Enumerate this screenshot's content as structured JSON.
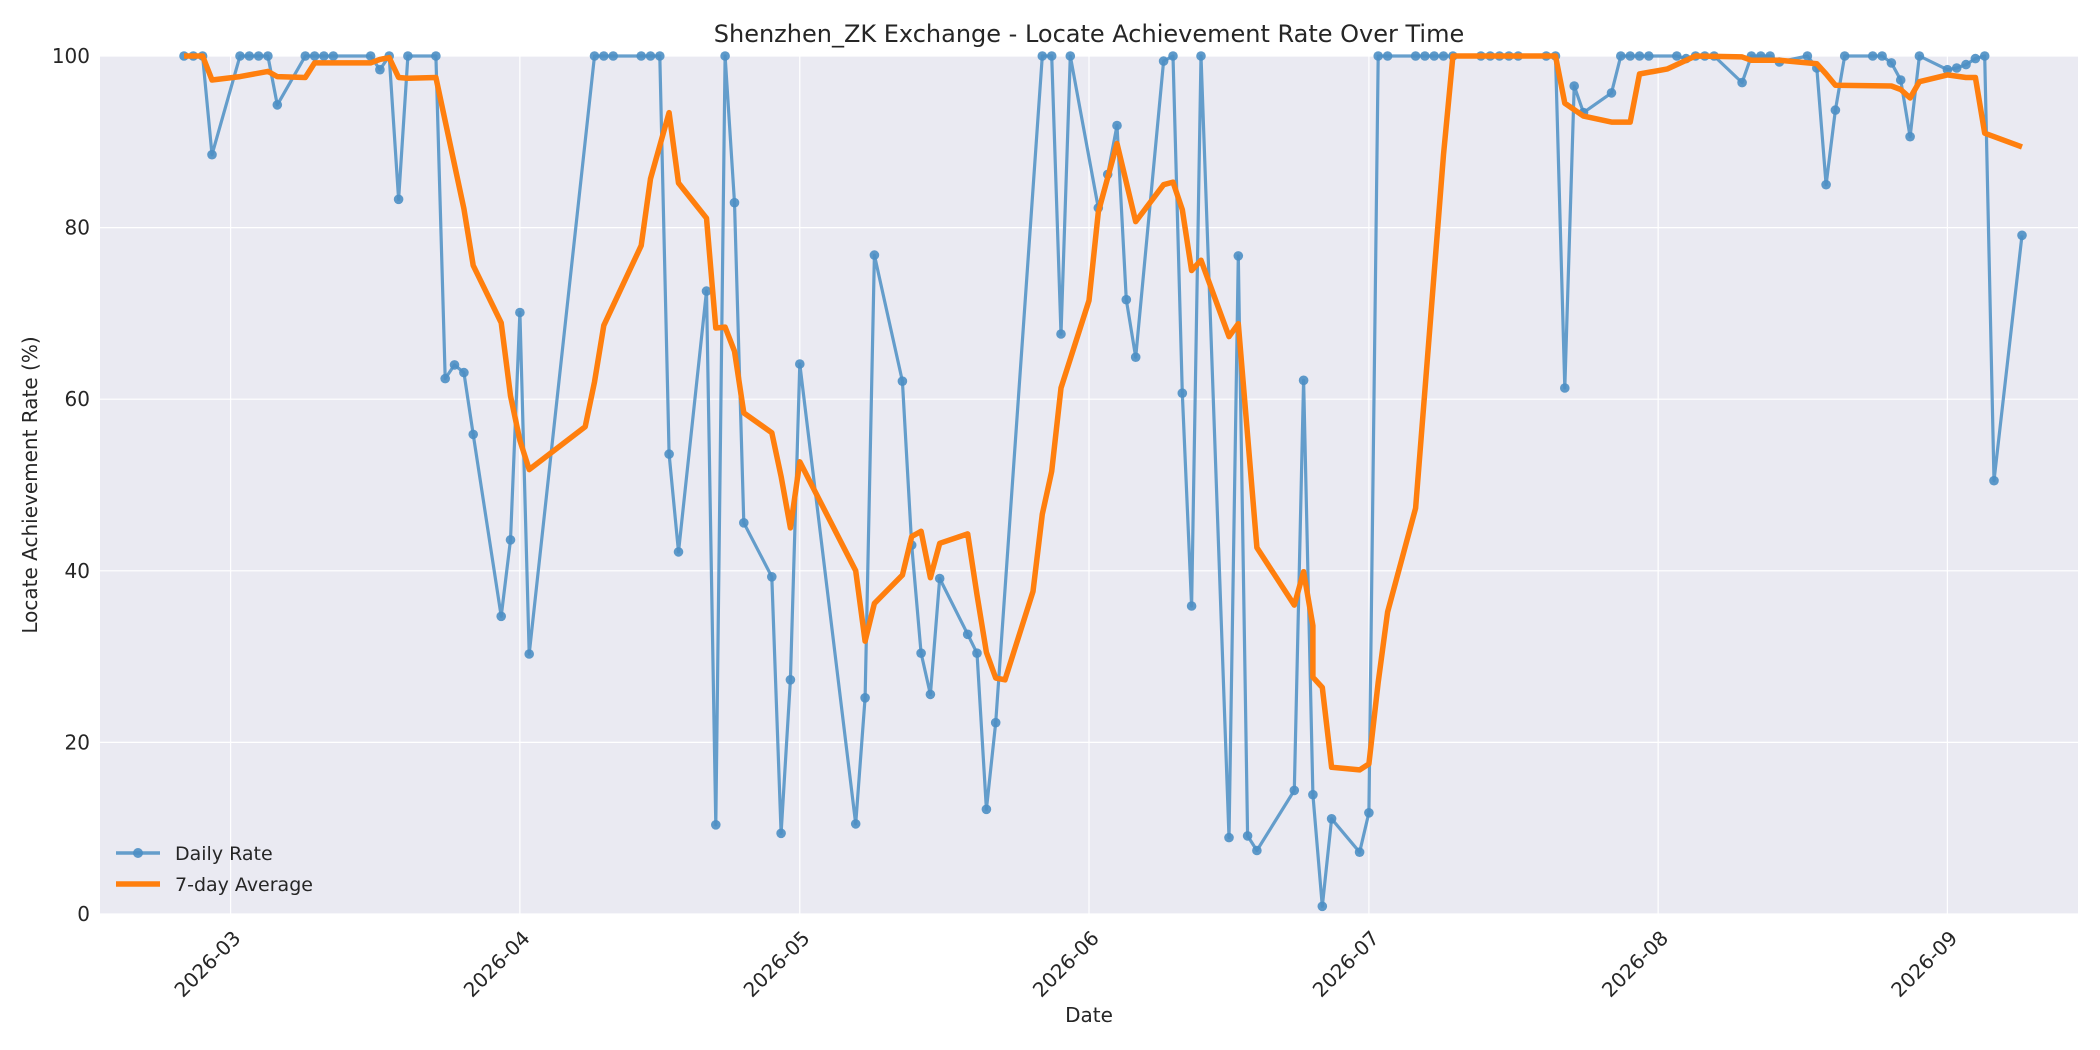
{
  "chart_data": {
    "type": "line",
    "title": "Shenzhen_ZK Exchange - Locate Achievement Rate Over Time",
    "xlabel": "Date",
    "ylabel": "Locate Achievement Rate (%)",
    "xlim": [
      "2026-02-15",
      "2026-09-15"
    ],
    "ylim": [
      0,
      100
    ],
    "yticks": [
      0,
      20,
      40,
      60,
      80,
      100
    ],
    "xticks": [
      "2026-03-01",
      "2026-04-01",
      "2026-05-01",
      "2026-06-01",
      "2026-07-01",
      "2026-08-01",
      "2026-09-01"
    ],
    "xtick_labels": [
      "2026-03",
      "2026-04",
      "2026-05",
      "2026-06",
      "2026-07",
      "2026-08",
      "2026-09"
    ],
    "grid": true,
    "legend_position": "lower-left",
    "background_color": "#EAEAF2",
    "series": [
      {
        "name": "Daily Rate",
        "color": "#4C8FC4",
        "markers": true,
        "points": [
          [
            "2026-02-24",
            100
          ],
          [
            "2026-02-25",
            100
          ],
          [
            "2026-02-26",
            100
          ],
          [
            "2026-02-27",
            88.5
          ],
          [
            "2026-03-02",
            100
          ],
          [
            "2026-03-03",
            100
          ],
          [
            "2026-03-04",
            100
          ],
          [
            "2026-03-05",
            100
          ],
          [
            "2026-03-06",
            94.3
          ],
          [
            "2026-03-09",
            100
          ],
          [
            "2026-03-10",
            100
          ],
          [
            "2026-03-11",
            100
          ],
          [
            "2026-03-12",
            100
          ],
          [
            "2026-03-16",
            100
          ],
          [
            "2026-03-17",
            98.4
          ],
          [
            "2026-03-18",
            100
          ],
          [
            "2026-03-19",
            83.3
          ],
          [
            "2026-03-20",
            100
          ],
          [
            "2026-03-23",
            100
          ],
          [
            "2026-03-24",
            62.4
          ],
          [
            "2026-03-25",
            64.0
          ],
          [
            "2026-03-26",
            63.1
          ],
          [
            "2026-03-27",
            55.9
          ],
          [
            "2026-03-30",
            34.7
          ],
          [
            "2026-03-31",
            43.6
          ],
          [
            "2026-04-01",
            70.1
          ],
          [
            "2026-04-02",
            30.3
          ],
          [
            "2026-04-09",
            100
          ],
          [
            "2026-04-10",
            100
          ],
          [
            "2026-04-11",
            100
          ],
          [
            "2026-04-14",
            100
          ],
          [
            "2026-04-15",
            100
          ],
          [
            "2026-04-16",
            100
          ],
          [
            "2026-04-17",
            53.6
          ],
          [
            "2026-04-18",
            42.2
          ],
          [
            "2026-04-21",
            72.6
          ],
          [
            "2026-04-22",
            10.4
          ],
          [
            "2026-04-23",
            100
          ],
          [
            "2026-04-24",
            82.9
          ],
          [
            "2026-04-25",
            45.6
          ],
          [
            "2026-04-28",
            39.3
          ],
          [
            "2026-04-29",
            9.4
          ],
          [
            "2026-04-30",
            27.3
          ],
          [
            "2026-05-01",
            64.1
          ],
          [
            "2026-05-07",
            10.5
          ],
          [
            "2026-05-08",
            25.2
          ],
          [
            "2026-05-09",
            76.8
          ],
          [
            "2026-05-12",
            62.1
          ],
          [
            "2026-05-13",
            43.0
          ],
          [
            "2026-05-14",
            30.4
          ],
          [
            "2026-05-15",
            25.6
          ],
          [
            "2026-05-16",
            39.1
          ],
          [
            "2026-05-19",
            32.6
          ],
          [
            "2026-05-20",
            30.4
          ],
          [
            "2026-05-21",
            12.2
          ],
          [
            "2026-05-22",
            22.3
          ],
          [
            "2026-05-27",
            100
          ],
          [
            "2026-05-28",
            100
          ],
          [
            "2026-05-29",
            67.6
          ],
          [
            "2026-05-30",
            100
          ],
          [
            "2026-06-02",
            82.3
          ],
          [
            "2026-06-03",
            86.2
          ],
          [
            "2026-06-04",
            91.9
          ],
          [
            "2026-06-05",
            71.6
          ],
          [
            "2026-06-06",
            64.9
          ],
          [
            "2026-06-09",
            99.4
          ],
          [
            "2026-06-10",
            100
          ],
          [
            "2026-06-11",
            60.7
          ],
          [
            "2026-06-12",
            35.9
          ],
          [
            "2026-06-13",
            100
          ],
          [
            "2026-06-16",
            8.9
          ],
          [
            "2026-06-17",
            76.7
          ],
          [
            "2026-06-18",
            9.1
          ],
          [
            "2026-06-19",
            7.4
          ],
          [
            "2026-06-23",
            14.4
          ],
          [
            "2026-06-24",
            62.2
          ],
          [
            "2026-06-25",
            13.9
          ],
          [
            "2026-06-26",
            0.9
          ],
          [
            "2026-06-27",
            11.1
          ],
          [
            "2026-06-30",
            7.2
          ],
          [
            "2026-07-01",
            11.8
          ],
          [
            "2026-07-02",
            100
          ],
          [
            "2026-07-03",
            100
          ],
          [
            "2026-07-06",
            100
          ],
          [
            "2026-07-07",
            100
          ],
          [
            "2026-07-08",
            100
          ],
          [
            "2026-07-09",
            100
          ],
          [
            "2026-07-10",
            100
          ],
          [
            "2026-07-13",
            100
          ],
          [
            "2026-07-14",
            100
          ],
          [
            "2026-07-15",
            100
          ],
          [
            "2026-07-16",
            100
          ],
          [
            "2026-07-17",
            100
          ],
          [
            "2026-07-20",
            100
          ],
          [
            "2026-07-21",
            100
          ],
          [
            "2026-07-22",
            61.3
          ],
          [
            "2026-07-23",
            96.5
          ],
          [
            "2026-07-24",
            93.4
          ],
          [
            "2026-07-27",
            95.7
          ],
          [
            "2026-07-28",
            100
          ],
          [
            "2026-07-29",
            100
          ],
          [
            "2026-07-30",
            100
          ],
          [
            "2026-07-31",
            100
          ],
          [
            "2026-08-03",
            100
          ],
          [
            "2026-08-04",
            99.7
          ],
          [
            "2026-08-05",
            100
          ],
          [
            "2026-08-06",
            100
          ],
          [
            "2026-08-07",
            100
          ],
          [
            "2026-08-10",
            96.9
          ],
          [
            "2026-08-11",
            100
          ],
          [
            "2026-08-12",
            100
          ],
          [
            "2026-08-13",
            100
          ],
          [
            "2026-08-14",
            99.3
          ],
          [
            "2026-08-17",
            100
          ],
          [
            "2026-08-18",
            98.6
          ],
          [
            "2026-08-19",
            85.0
          ],
          [
            "2026-08-20",
            93.7
          ],
          [
            "2026-08-21",
            100
          ],
          [
            "2026-08-24",
            100
          ],
          [
            "2026-08-25",
            100
          ],
          [
            "2026-08-26",
            99.2
          ],
          [
            "2026-08-27",
            97.2
          ],
          [
            "2026-08-28",
            90.6
          ],
          [
            "2026-08-29",
            100
          ],
          [
            "2026-09-01",
            98.4
          ],
          [
            "2026-09-02",
            98.6
          ],
          [
            "2026-09-03",
            99.0
          ],
          [
            "2026-09-04",
            99.7
          ],
          [
            "2026-09-05",
            100
          ],
          [
            "2026-09-06",
            50.5
          ],
          [
            "2026-09-09",
            79.1
          ]
        ]
      },
      {
        "name": "7-day Average",
        "color": "#FF7F0E",
        "markers": false,
        "points": [
          [
            "2026-02-24",
            100
          ],
          [
            "2026-02-26",
            100
          ],
          [
            "2026-02-27",
            97.2
          ],
          [
            "2026-03-02",
            97.6
          ],
          [
            "2026-03-05",
            98.2
          ],
          [
            "2026-03-06",
            97.6
          ],
          [
            "2026-03-09",
            97.5
          ],
          [
            "2026-03-10",
            99.2
          ],
          [
            "2026-03-16",
            99.2
          ],
          [
            "2026-03-17",
            99.6
          ],
          [
            "2026-03-18",
            99.8
          ],
          [
            "2026-03-19",
            97.5
          ],
          [
            "2026-03-20",
            97.4
          ],
          [
            "2026-03-23",
            97.5
          ],
          [
            "2026-03-26",
            82.2
          ],
          [
            "2026-03-27",
            75.6
          ],
          [
            "2026-03-30",
            68.9
          ],
          [
            "2026-03-31",
            60.4
          ],
          [
            "2026-04-01",
            55.2
          ],
          [
            "2026-04-02",
            51.8
          ],
          [
            "2026-04-08",
            56.8
          ],
          [
            "2026-04-09",
            62.0
          ],
          [
            "2026-04-10",
            68.6
          ],
          [
            "2026-04-14",
            77.9
          ],
          [
            "2026-04-15",
            85.7
          ],
          [
            "2026-04-17",
            93.4
          ],
          [
            "2026-04-18",
            85.2
          ],
          [
            "2026-04-21",
            81.1
          ],
          [
            "2026-04-22",
            68.3
          ],
          [
            "2026-04-23",
            68.4
          ],
          [
            "2026-04-24",
            65.6
          ],
          [
            "2026-04-25",
            58.4
          ],
          [
            "2026-04-28",
            56.1
          ],
          [
            "2026-04-29",
            51.0
          ],
          [
            "2026-04-30",
            45.0
          ],
          [
            "2026-05-01",
            52.7
          ],
          [
            "2026-05-07",
            40.0
          ],
          [
            "2026-05-08",
            31.8
          ],
          [
            "2026-05-09",
            36.2
          ],
          [
            "2026-05-12",
            39.5
          ],
          [
            "2026-05-13",
            44.0
          ],
          [
            "2026-05-14",
            44.6
          ],
          [
            "2026-05-15",
            39.2
          ],
          [
            "2026-05-16",
            43.2
          ],
          [
            "2026-05-19",
            44.3
          ],
          [
            "2026-05-20",
            37.2
          ],
          [
            "2026-05-21",
            30.5
          ],
          [
            "2026-05-22",
            27.5
          ],
          [
            "2026-05-23",
            27.3
          ],
          [
            "2026-05-26",
            37.6
          ],
          [
            "2026-05-27",
            46.6
          ],
          [
            "2026-05-28",
            51.6
          ],
          [
            "2026-05-29",
            61.3
          ],
          [
            "2026-06-01",
            71.5
          ],
          [
            "2026-06-02",
            81.8
          ],
          [
            "2026-06-04",
            89.8
          ],
          [
            "2026-06-06",
            80.7
          ],
          [
            "2026-06-09",
            85.0
          ],
          [
            "2026-06-10",
            85.3
          ],
          [
            "2026-06-11",
            82.1
          ],
          [
            "2026-06-12",
            75.0
          ],
          [
            "2026-06-13",
            76.2
          ],
          [
            "2026-06-16",
            67.3
          ],
          [
            "2026-06-17",
            68.8
          ],
          [
            "2026-06-19",
            42.7
          ],
          [
            "2026-06-23",
            36.0
          ],
          [
            "2026-06-24",
            39.9
          ],
          [
            "2026-06-25",
            33.6
          ],
          [
            "2026-06-25",
            27.6
          ],
          [
            "2026-06-26",
            26.4
          ],
          [
            "2026-06-27",
            17.1
          ],
          [
            "2026-06-30",
            16.8
          ],
          [
            "2026-07-01",
            17.5
          ],
          [
            "2026-07-02",
            27.0
          ],
          [
            "2026-07-03",
            35.2
          ],
          [
            "2026-07-06",
            47.3
          ],
          [
            "2026-07-09",
            88.5
          ],
          [
            "2026-07-10",
            100
          ],
          [
            "2026-07-21",
            100
          ],
          [
            "2026-07-22",
            94.5
          ],
          [
            "2026-07-24",
            93.0
          ],
          [
            "2026-07-27",
            92.3
          ],
          [
            "2026-07-29",
            92.3
          ],
          [
            "2026-07-30",
            97.9
          ],
          [
            "2026-08-02",
            98.5
          ],
          [
            "2026-08-05",
            100
          ],
          [
            "2026-08-10",
            99.9
          ],
          [
            "2026-08-11",
            99.5
          ],
          [
            "2026-08-14",
            99.5
          ],
          [
            "2026-08-18",
            99.1
          ],
          [
            "2026-08-19",
            97.9
          ],
          [
            "2026-08-20",
            96.6
          ],
          [
            "2026-08-26",
            96.5
          ],
          [
            "2026-08-27",
            96.1
          ],
          [
            "2026-08-28",
            95.1
          ],
          [
            "2026-08-29",
            97.0
          ],
          [
            "2026-09-01",
            97.8
          ],
          [
            "2026-09-03",
            97.5
          ],
          [
            "2026-09-04",
            97.5
          ],
          [
            "2026-09-05",
            91.0
          ],
          [
            "2026-09-09",
            89.4
          ]
        ]
      }
    ]
  }
}
